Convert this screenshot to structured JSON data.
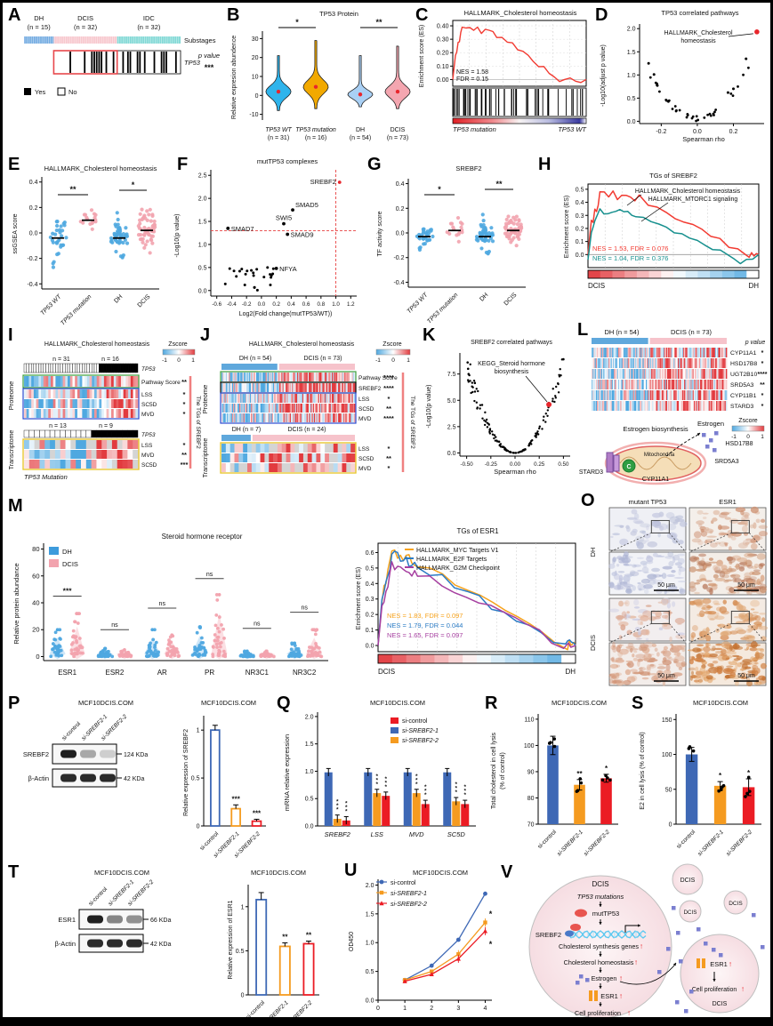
{
  "colors": {
    "blue_dot": "#4FA8E0",
    "pink_dot": "#F2A3AE",
    "bar_blue": "#3E68B5",
    "bar_orange": "#F59B20",
    "bar_red": "#EB1C24",
    "gsea_red": "#F23B32",
    "gsea_teal": "#17908E",
    "gsea_orange": "#F6A21C",
    "gsea_blue": "#2B7BC4",
    "gsea_purple": "#A63FA0",
    "heat_blue": "#4FA8E0",
    "heat_red": "#E23B3F",
    "heat_na": "#D4D4D4",
    "accent_red": "#E8262C",
    "purple_sq": "#7B7FD0"
  },
  "panels": {
    "A": {
      "label": "A",
      "groups": [
        {
          "name": "DH",
          "n": "(n = 15)",
          "color": "#76ADE2",
          "count": 15
        },
        {
          "name": "DCIS",
          "n": "(n = 32)",
          "color": "#F7C8CE",
          "count": 32
        },
        {
          "name": "IDC",
          "n": "(n = 32)",
          "color": "#83D9D6",
          "count": 32
        }
      ],
      "substages_label": "Substages",
      "gene": "TP53",
      "p_label": "p value",
      "p_stars": "***",
      "legend": [
        {
          "label": "Yes",
          "fill": "#000"
        },
        {
          "label": "No",
          "fill": "#fff"
        }
      ]
    },
    "B": {
      "label": "B",
      "title": "TP53 Protein",
      "ylabel": "Relative expresion abundence",
      "yticks": [
        -10,
        0,
        10,
        20,
        30
      ],
      "groups": [
        {
          "name": "TP53 WT",
          "n": "(n = 31)",
          "color": "#2FB4EC",
          "mean": 2,
          "min": -8,
          "max": 21,
          "sd": 4.5
        },
        {
          "name": "TP53 mutation",
          "n": "(n = 16)",
          "color": "#F2A900",
          "mean": 4.5,
          "min": -7,
          "max": 29,
          "sd": 5
        },
        {
          "name": "DH",
          "n": "(n = 54)",
          "color": "#A9D0F5",
          "mean": 0.5,
          "min": -6,
          "max": 21,
          "sd": 3.2
        },
        {
          "name": "DCIS",
          "n": "(n = 73)",
          "color": "#F4A6B0",
          "mean": 2,
          "min": -7,
          "max": 26,
          "sd": 4.5
        }
      ],
      "sig": [
        {
          "a": 0,
          "b": 1,
          "stars": "*"
        },
        {
          "a": 2,
          "b": 3,
          "stars": "**"
        }
      ]
    },
    "C": {
      "label": "C",
      "title": "HALLMARK_Cholesterol homeostasis",
      "ylabel": "Enrichment score (ES)",
      "yticks": [
        0.0,
        0.1,
        0.2,
        0.3,
        0.4
      ],
      "nes": "NES = 1.58",
      "fdr": "FDR = 0.15",
      "left_label": "TP53 mutation",
      "right_label": "TP53 WT",
      "peak": 0.39
    },
    "D": {
      "label": "D",
      "title": "TP53 correlated pathways",
      "xlabel": "Spearman rho",
      "ylabel": "-Log10(adjust p value)",
      "xticks": [
        -0.2,
        0.0,
        0.2
      ],
      "yticks": [
        0.0,
        0.5,
        1.0,
        1.5,
        2.0
      ],
      "annotation_lines": [
        "HALLMARK_Cholesterol",
        "homeostasis"
      ],
      "highlight": {
        "rho": 0.33,
        "y": 1.93
      },
      "extra_points": [
        [
          -0.27,
          1.25
        ],
        [
          -0.24,
          1.01
        ],
        [
          0.27,
          1.35
        ],
        [
          0.2,
          0.7
        ],
        [
          0.17,
          0.62
        ]
      ]
    },
    "E": {
      "label": "E",
      "title": "HALLMARK_Cholesterol homeostasis",
      "ylabel": "ssGSEA score",
      "yticks": [
        -0.4,
        -0.2,
        0.0,
        0.2,
        0.4
      ],
      "groups": [
        {
          "name": "TP53 WT",
          "color": "blue",
          "median": -0.04,
          "sd": 0.15,
          "n": 31
        },
        {
          "name": "TP53 mutation",
          "color": "pink",
          "median": 0.1,
          "sd": 0.07,
          "n": 16
        },
        {
          "name": "DH",
          "color": "blue",
          "median": -0.04,
          "sd": 0.1,
          "n": 54
        },
        {
          "name": "DCIS",
          "color": "pink",
          "median": 0.02,
          "sd": 0.13,
          "n": 73
        }
      ],
      "sig": [
        {
          "a": 0,
          "b": 1,
          "stars": "**"
        },
        {
          "a": 2,
          "b": 3,
          "stars": "*"
        }
      ]
    },
    "F": {
      "label": "F",
      "title": "mutTP53 complexes",
      "xlabel": "Log2(Fold change(mutTP53/WT))",
      "ylabel": "-Log10(p value)",
      "xticks": [
        -0.6,
        -0.4,
        -0.2,
        0.0,
        0.2,
        0.4,
        0.6,
        0.8,
        1.0,
        1.2
      ],
      "yticks": [
        0.0,
        0.5,
        1.0,
        1.5,
        2.0,
        2.5
      ],
      "threshold_x": 1.0,
      "threshold_y": 1.3,
      "labeled_points": [
        {
          "name": "SREBF2",
          "x": 1.05,
          "y": 2.35,
          "red": true
        },
        {
          "name": "SMAD5",
          "x": 0.42,
          "y": 1.75
        },
        {
          "name": "SWI5",
          "x": 0.3,
          "y": 1.45
        },
        {
          "name": "SMAD7",
          "x": -0.45,
          "y": 1.35
        },
        {
          "name": "SMAD9",
          "x": 0.35,
          "y": 1.22
        },
        {
          "name": "NFYA",
          "x": 0.2,
          "y": 0.48
        }
      ]
    },
    "G": {
      "label": "G",
      "title": "SREBF2",
      "ylabel": "TF activity score",
      "yticks": [
        -0.4,
        -0.2,
        0.0,
        0.2,
        0.4
      ],
      "groups": [
        {
          "name": "TP53 WT",
          "color": "blue",
          "median": -0.03,
          "sd": 0.07,
          "n": 31
        },
        {
          "name": "TP53 mutation",
          "color": "pink",
          "median": 0.02,
          "sd": 0.09,
          "n": 16
        },
        {
          "name": "DH",
          "color": "blue",
          "median": -0.03,
          "sd": 0.09,
          "n": 54
        },
        {
          "name": "DCIS",
          "color": "pink",
          "median": 0.02,
          "sd": 0.09,
          "n": 73
        }
      ],
      "sig": [
        {
          "a": 0,
          "b": 1,
          "stars": "*"
        },
        {
          "a": 2,
          "b": 3,
          "stars": "**"
        }
      ]
    },
    "H": {
      "label": "H",
      "title": "TGs of SREBF2",
      "ylabel": "Enrichment score (ES)",
      "yticks": [
        0.0,
        0.1,
        0.2,
        0.3,
        0.4,
        0.5
      ],
      "curves": [
        {
          "name": "HALLMARK_Cholesterol homeostasis",
          "color": "#F23B32",
          "peak": 0.48,
          "nes": "NES = 1.53, FDR = 0.076"
        },
        {
          "name": "HALLMARK_MTORC1 signaling",
          "color": "#17908E",
          "peak": 0.35,
          "nes": "NES = 1.04, FDR = 0.376"
        }
      ],
      "left_label": "DCIS",
      "right_label": "DH"
    },
    "I": {
      "label": "I",
      "title": "HALLMARK_Cholesterol homeostasis",
      "zscore_label": "Zscore",
      "zscore_ticks": [
        "-1",
        "0",
        "1"
      ],
      "proteome_label": "Proteome",
      "transcriptome_label": "Transcriptome",
      "prot_n": [
        "n = 31",
        "n = 16"
      ],
      "trans_n": [
        "n = 13",
        "n = 9"
      ],
      "gene_row": "TP53",
      "prot_rows": [
        {
          "name": "Pathway Score",
          "sig": "**"
        },
        {
          "name": "LSS",
          "sig": "*"
        },
        {
          "name": "SC5D",
          "sig": "*"
        },
        {
          "name": "MVD",
          "sig": "*"
        }
      ],
      "trans_rows": [
        {
          "name": "LSS",
          "sig": "*"
        },
        {
          "name": "MVD",
          "sig": "**"
        },
        {
          "name": "SC5D",
          "sig": "***"
        }
      ],
      "right_label": "The TGs of SREBF2",
      "bottom_label": "TP53 Mutation"
    },
    "J": {
      "label": "J",
      "title": "HALLMARK_Cholesterol homeostasis",
      "zscore_label": "Zscore",
      "zscore_ticks": [
        "-1",
        "0",
        "1"
      ],
      "proteome_label": "Proteome",
      "transcriptome_label": "Transcriptome",
      "prot_groups": [
        {
          "name": "DH (n = 54)",
          "count": 54,
          "color": "#5FA8DC"
        },
        {
          "name": "DCIS (n = 73)",
          "count": 73,
          "color": "#F6C3CB"
        }
      ],
      "trans_groups": [
        {
          "name": "DH (n = 7)",
          "count": 7,
          "color": "#5FA8DC"
        },
        {
          "name": "DCIS (n = 24)",
          "count": 24,
          "color": "#F6C3CB"
        }
      ],
      "prot_rows": [
        {
          "name": "Pathway Score",
          "sig": "****"
        },
        {
          "name": "SREBF2",
          "sig": "****"
        },
        {
          "name": "LSS",
          "sig": "*"
        },
        {
          "name": "SC5D",
          "sig": "**"
        },
        {
          "name": "MVD",
          "sig": "****"
        }
      ],
      "trans_rows": [
        {
          "name": "LSS",
          "sig": "*"
        },
        {
          "name": "SC5D",
          "sig": "**"
        },
        {
          "name": "MVD",
          "sig": "*"
        }
      ],
      "right_label": "The TGs of SREBF2"
    },
    "K": {
      "label": "K",
      "title": "SREBF2 correlated pathways",
      "xlabel": "Spearman rho",
      "ylabel": "-Log10(p value)",
      "xticks": [
        "-0.50",
        "-0.25",
        "0.00",
        "0.25",
        "0.50"
      ],
      "yticks": [
        "0.0",
        "2.5",
        "5.0",
        "7.5"
      ],
      "annotation_lines": [
        "KEGG_Steroid hormone",
        "biosynthesis"
      ],
      "highlight": {
        "rho": 0.35,
        "y": 4.6
      }
    },
    "L": {
      "label": "L",
      "groups": [
        {
          "name": "DH (n = 54)",
          "count": 54,
          "color": "#5FA8DC"
        },
        {
          "name": "DCIS (n = 73)",
          "count": 73,
          "color": "#F6C3CB"
        }
      ],
      "p_label": "p value",
      "rows": [
        {
          "name": "CYP11A1",
          "sig": "*"
        },
        {
          "name": "HSD17B8",
          "sig": "*"
        },
        {
          "name": "UGT2B10",
          "sig": "****"
        },
        {
          "name": "SRD5A3",
          "sig": "**"
        },
        {
          "name": "CYP11B1",
          "sig": "*"
        },
        {
          "name": "STARD3",
          "sig": "*"
        }
      ],
      "zscore_label": "Zscore",
      "zscore_ticks": [
        "-1",
        "0",
        "1"
      ],
      "diagram": {
        "title": "Estrogen biosynthesis",
        "mito": "Mitochondria",
        "stard3": "STARD3",
        "cyp11a1": "CYP11A1",
        "srd5a3": "SRD5A3",
        "hsd17b8": "HSD17B8",
        "estrogen": "Estrogen",
        "c_label": "C"
      }
    },
    "M": {
      "label": "M",
      "title": "Steroid hormone receptor",
      "ylabel": "Relative protein abundance",
      "yticks": [
        0,
        20,
        40,
        60,
        80
      ],
      "legend": [
        {
          "name": "DH",
          "color": "#3D9BDC"
        },
        {
          "name": "DCIS",
          "color": "#F2A3AE"
        }
      ],
      "groups": [
        {
          "name": "ESR1",
          "sig": "***",
          "dh_max": 20,
          "dcis_max": 32,
          "bar": 45
        },
        {
          "name": "ESR2",
          "sig": "ns",
          "dh_max": 6,
          "dcis_max": 5,
          "bar": 20
        },
        {
          "name": "AR",
          "sig": "ns",
          "dh_max": 20,
          "dcis_max": 16,
          "bar": 36
        },
        {
          "name": "PR",
          "sig": "ns",
          "dh_max": 22,
          "dcis_max": 46,
          "bar": 58
        },
        {
          "name": "NR3C1",
          "sig": "ns",
          "dh_max": 4,
          "dcis_max": 4,
          "bar": 21
        },
        {
          "name": "NR3C2",
          "sig": "ns",
          "dh_max": 10,
          "dcis_max": 20,
          "bar": 33
        }
      ],
      "gsea": {
        "title": "TGs of ESR1",
        "ylabel": "Enrichment score (ES)",
        "yticks": [
          0.0,
          0.1,
          0.2,
          0.3,
          0.4,
          0.5,
          0.6
        ],
        "curves": [
          {
            "name": "HALLMARK_MYC Targets V1",
            "color": "#F6A21C",
            "peak": 0.61,
            "nes": "NES = 1.83, FDR = 0.097"
          },
          {
            "name": "HALLMARK_E2F Targets",
            "color": "#2B7BC4",
            "peak": 0.59,
            "nes": "NES = 1.79, FDR = 0.044"
          },
          {
            "name": "HALLMARK_G2M Checkpoint",
            "color": "#A63FA0",
            "peak": 0.54,
            "nes": "NES = 1.65, FDR = 0.097"
          }
        ],
        "left_label": "DCIS",
        "right_label": "DH"
      }
    },
    "O": {
      "label": "O",
      "col_headers": [
        "mutant TP53",
        "ESR1"
      ],
      "row_headers": [
        "DH",
        "DCIS"
      ],
      "scale_label": "50 μm"
    },
    "P": {
      "label": "P",
      "blot_title": "MCF10DCIS.COM",
      "chart_title": "MCF10DCIS.COM",
      "lanes": [
        "si-control",
        "si-SREBF2-1",
        "si-SREBF2-2"
      ],
      "bands": [
        {
          "name": "SREBF2",
          "kda": "124 KDa",
          "intensities": [
            0.95,
            0.35,
            0.18
          ]
        },
        {
          "name": "β-Actin",
          "kda": "42 KDa",
          "intensities": [
            0.9,
            0.9,
            0.9
          ]
        }
      ],
      "chart": {
        "ylabel": "Relative expression of SREBF2",
        "yticks": [
          0,
          0.5,
          1.0
        ],
        "categories": [
          "si-control",
          "si-SREBF2-1",
          "si-SREBF2-2"
        ],
        "values": [
          1.0,
          0.18,
          0.05
        ],
        "errors": [
          0.05,
          0.04,
          0.02
        ],
        "sig": [
          "",
          "***",
          "***"
        ]
      }
    },
    "Q": {
      "label": "Q",
      "title": "MCF10DCIS.COM",
      "ylabel": "mRNA relative expression",
      "yticks": [
        0.0,
        0.5,
        1.0,
        1.5,
        2.0
      ],
      "legend": [
        {
          "name": "si-control",
          "color": "#EB1C24"
        },
        {
          "name": "si-SREBF2-1",
          "color": "#3E68B5"
        },
        {
          "name": "si-SREBF2-2",
          "color": "#F59B20"
        }
      ],
      "categories": [
        "SREBF2",
        "LSS",
        "MVD",
        "SC5D"
      ],
      "series": [
        {
          "color": "#3E68B5",
          "values": [
            0.98,
            0.98,
            0.98,
            0.98
          ],
          "sig": [
            "",
            "",
            "",
            ""
          ]
        },
        {
          "color": "#F59B20",
          "values": [
            0.13,
            0.6,
            0.6,
            0.45
          ],
          "sig": [
            "***",
            "***",
            "***",
            "***"
          ]
        },
        {
          "color": "#EB1C24",
          "values": [
            0.1,
            0.55,
            0.4,
            0.4
          ],
          "sig": [
            "***",
            "***",
            "***",
            "***"
          ]
        }
      ]
    },
    "R": {
      "label": "R",
      "title": "MCF10DCIS.COM",
      "ylabel_lines": [
        "Total cholesterol in cell lysis",
        "(% of control)"
      ],
      "yticks": [
        70,
        80,
        90,
        100,
        110
      ],
      "categories": [
        "si-control",
        "si-SREBF2-1",
        "si-SREBF2-2"
      ],
      "values": [
        100,
        85,
        87.5
      ],
      "errors": [
        3.5,
        2,
        1.5
      ],
      "sig": [
        "",
        "**",
        "*"
      ]
    },
    "S": {
      "label": "S",
      "title": "MCF10DCIS.COM",
      "ylabel": "E2 in cell lysis (% of control)",
      "yticks": [
        0,
        50,
        100,
        150
      ],
      "categories": [
        "si-control",
        "si-SREBF2-1",
        "si-SREBF2-2"
      ],
      "values": [
        100,
        55,
        53
      ],
      "errors": [
        10,
        6,
        12
      ],
      "sig": [
        "",
        "*",
        "*"
      ]
    },
    "T": {
      "label": "T",
      "blot_title": "MCF10DCIS.COM",
      "chart_title": "MCF10DCIS.COM",
      "lanes": [
        "si-control",
        "si-SREBF2-1",
        "si-SREBF2-2"
      ],
      "bands": [
        {
          "name": "ESR1",
          "kda": "66 KDa",
          "intensities": [
            0.95,
            0.5,
            0.45
          ]
        },
        {
          "name": "β-Actin",
          "kda": "42 KDa",
          "intensities": [
            0.9,
            0.9,
            0.9
          ]
        }
      ],
      "chart": {
        "ylabel": "Relative expression of ESR1",
        "yticks": [
          0,
          0.5,
          1.0
        ],
        "categories": [
          "si-control",
          "si-SREBF2-1",
          "si-SREBF2-2"
        ],
        "values": [
          1.08,
          0.55,
          0.58
        ],
        "errors": [
          0.08,
          0.04,
          0.03
        ],
        "sig": [
          "",
          "**",
          "**"
        ]
      }
    },
    "U": {
      "label": "U",
      "title": "MCF10DCIS.COM",
      "xlabel": "Days",
      "ylabel": "OD450",
      "xticks": [
        0,
        1,
        2,
        3,
        4
      ],
      "yticks": [
        0.0,
        0.5,
        1.0,
        1.5,
        2.0
      ],
      "days": [
        1,
        2,
        3,
        4
      ],
      "series": [
        {
          "name": "si-control",
          "color": "#3E68B5",
          "marker": "circle",
          "values": [
            0.35,
            0.6,
            1.05,
            1.85
          ]
        },
        {
          "name": "si-SREBF2-1",
          "color": "#F59B20",
          "marker": "square",
          "values": [
            0.35,
            0.5,
            0.8,
            1.35
          ]
        },
        {
          "name": "si-SREBF2-2",
          "color": "#EB1C24",
          "marker": "triangle",
          "values": [
            0.33,
            0.45,
            0.72,
            1.2
          ]
        }
      ],
      "sig_day4": [
        "*",
        "*"
      ]
    },
    "V": {
      "label": "V",
      "big": {
        "name": "DCIS",
        "step1": "TP53 mutations",
        "mut": "mutTP53",
        "srebf2": "SREBF2",
        "step2": "Cholesterol synthesis genes",
        "step3": "Cholesterol homeostasis",
        "step4": "Estrogen",
        "step5": "ESR1",
        "step6": "Cell proliferation",
        "up": "↑"
      },
      "smalls": [
        "DCIS",
        "DCIS",
        "DCIS"
      ],
      "right": {
        "esr1": "ESR1",
        "prolif": "Cell proliferation",
        "name": "DCIS",
        "up": "↑"
      }
    }
  }
}
